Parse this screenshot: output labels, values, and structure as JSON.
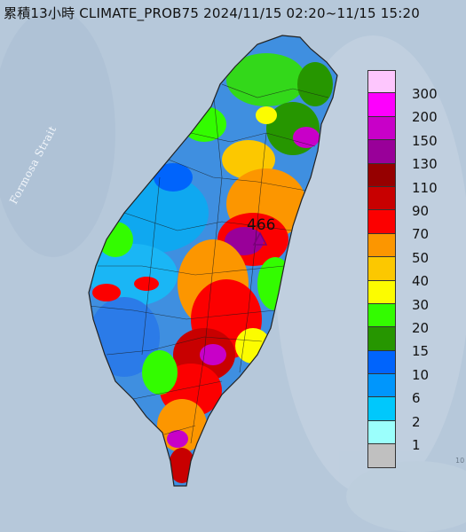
{
  "title": "累積13小時 CLIMATE_PROB75 2024/11/15 02:20~11/15 15:20",
  "strait_label": "Formosa Strait",
  "max_label": "466",
  "corner_mark": "10",
  "colors": {
    "sea": "#b3c6d8",
    "land_base": "#6fa6d8"
  },
  "legend": [
    {
      "label": "300",
      "color": "#fdc6fd"
    },
    {
      "label": "200",
      "color": "#fd00fd"
    },
    {
      "label": "150",
      "color": "#c800c8"
    },
    {
      "label": "130",
      "color": "#990099"
    },
    {
      "label": "110",
      "color": "#960000"
    },
    {
      "label": "90",
      "color": "#c80000"
    },
    {
      "label": "70",
      "color": "#fc0000"
    },
    {
      "label": "50",
      "color": "#fc9600"
    },
    {
      "label": "40",
      "color": "#fcc800"
    },
    {
      "label": "30",
      "color": "#fcfc00"
    },
    {
      "label": "20",
      "color": "#33fc00"
    },
    {
      "label": "15",
      "color": "#269600"
    },
    {
      "label": "10",
      "color": "#0064fc"
    },
    {
      "label": "6",
      "color": "#0096fc"
    },
    {
      "label": "2",
      "color": "#00c8fc"
    },
    {
      "label": "1",
      "color": "#9bfffc"
    },
    {
      "label": "",
      "color": "#c0c0c0"
    }
  ]
}
